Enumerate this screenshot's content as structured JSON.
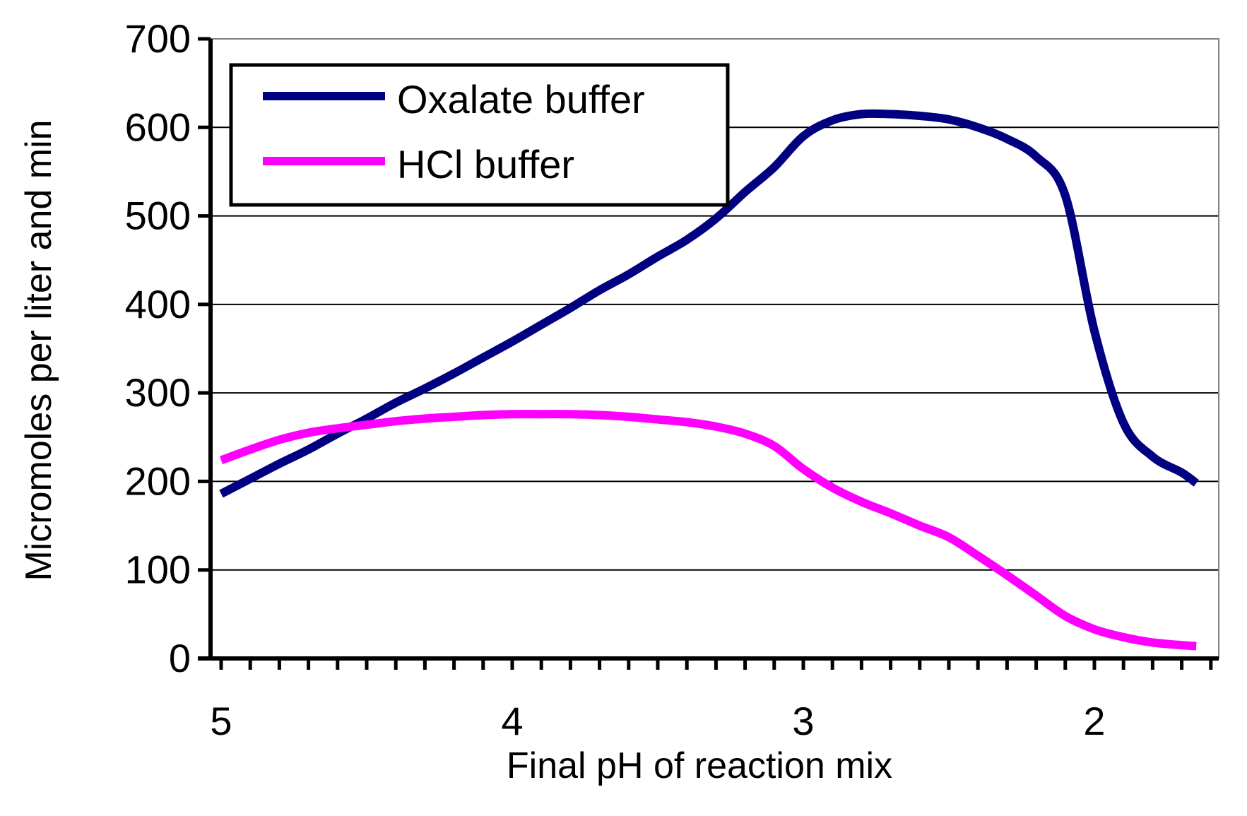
{
  "chart_data": {
    "type": "line",
    "title": "",
    "xlabel": "Final pH of reaction mix",
    "ylabel": "Micromoles per liter and min",
    "xlim": [
      5.0,
      1.65
    ],
    "x_reversed": true,
    "ylim": [
      0,
      700
    ],
    "yticks": [
      0,
      100,
      200,
      300,
      400,
      500,
      600,
      700
    ],
    "ytick_labels": [
      "0",
      "100",
      "200",
      "300",
      "400",
      "500",
      "600",
      "700"
    ],
    "xticks": [
      5,
      4,
      3,
      2
    ],
    "xtick_labels": [
      "5",
      "4",
      "3",
      "2"
    ],
    "minor_xtick_step": 0.1,
    "grid": "horizontal",
    "legend_position": "top-left",
    "series": [
      {
        "name": "Oxalate buffer",
        "color": "#000080",
        "x": [
          5.0,
          4.9,
          4.8,
          4.7,
          4.6,
          4.5,
          4.4,
          4.3,
          4.2,
          4.1,
          4.0,
          3.9,
          3.8,
          3.7,
          3.6,
          3.5,
          3.4,
          3.3,
          3.2,
          3.1,
          3.0,
          2.9,
          2.8,
          2.7,
          2.6,
          2.5,
          2.4,
          2.3,
          2.2,
          2.1,
          2.0,
          1.9,
          1.8,
          1.7,
          1.65
        ],
        "y": [
          186,
          203,
          220,
          236,
          254,
          271,
          289,
          305,
          322,
          340,
          358,
          377,
          396,
          416,
          434,
          454,
          473,
          497,
          527,
          555,
          590,
          608,
          615,
          615,
          613,
          609,
          600,
          587,
          567,
          523,
          370,
          266,
          228,
          210,
          198
        ]
      },
      {
        "name": "HCl buffer",
        "color": "#ff00ff",
        "x": [
          5.0,
          4.9,
          4.8,
          4.7,
          4.6,
          4.5,
          4.4,
          4.3,
          4.2,
          4.1,
          4.0,
          3.9,
          3.8,
          3.7,
          3.6,
          3.5,
          3.4,
          3.3,
          3.2,
          3.1,
          3.0,
          2.9,
          2.8,
          2.7,
          2.6,
          2.5,
          2.4,
          2.3,
          2.2,
          2.1,
          2.0,
          1.9,
          1.8,
          1.7,
          1.65
        ],
        "y": [
          224,
          236,
          247,
          255,
          260,
          264,
          268,
          271,
          273,
          275,
          276,
          276,
          276,
          275,
          273,
          270,
          267,
          262,
          254,
          240,
          214,
          193,
          177,
          164,
          150,
          137,
          116,
          94,
          71,
          48,
          33,
          24,
          18,
          15,
          14
        ]
      }
    ]
  }
}
